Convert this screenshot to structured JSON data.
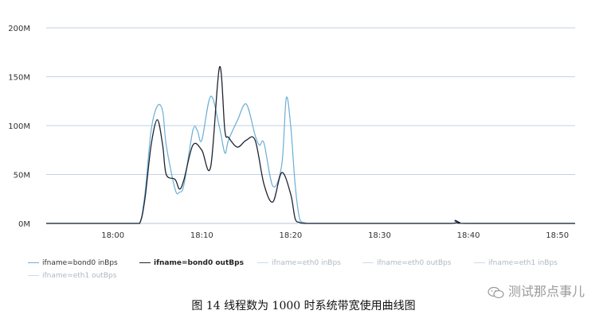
{
  "chart_data": {
    "type": "line",
    "title": "",
    "xlabel": "",
    "ylabel": "",
    "y_ticks": [
      "0M",
      "50M",
      "100M",
      "150M",
      "200M"
    ],
    "ylim": [
      0,
      200
    ],
    "x_ticks": [
      "18:00",
      "18:10",
      "18:20",
      "18:30",
      "18:40",
      "18:50"
    ],
    "xlim": [
      -7.5,
      52
    ],
    "grid": "horizontal",
    "legend_position": "bottom",
    "series": [
      {
        "name": "ifname=bond0 inBps",
        "color": "#6baed6",
        "x": [
          -7.5,
          0,
          2,
          3,
          3.6,
          4.3,
          5,
          5.6,
          6,
          7,
          7.5,
          8,
          9,
          9.5,
          10,
          11,
          12,
          12.6,
          13,
          14,
          15,
          16,
          16.5,
          17,
          18,
          19,
          19.5,
          20,
          20.5,
          21,
          21.5,
          22,
          23,
          30,
          38,
          38.5,
          39,
          40,
          52
        ],
        "y": [
          0,
          0,
          0,
          0,
          30,
          95,
          120,
          115,
          80,
          35,
          32,
          40,
          95,
          95,
          85,
          130,
          98,
          72,
          85,
          105,
          122,
          90,
          80,
          82,
          38,
          60,
          128,
          100,
          40,
          5,
          1,
          0,
          0,
          0,
          0,
          2,
          1,
          0,
          0
        ]
      },
      {
        "name": "ifname=bond0 outBps",
        "color": "#1f2430",
        "x": [
          -7.5,
          0,
          2,
          3,
          3.6,
          4.3,
          5,
          5.6,
          6,
          7,
          7.5,
          8,
          9,
          10,
          11,
          12,
          12.6,
          13,
          14,
          15,
          16,
          17,
          18,
          19,
          20,
          20.5,
          21,
          21.5,
          22,
          23,
          30,
          38,
          38.5,
          39,
          40,
          52
        ],
        "y": [
          0,
          0,
          0,
          0,
          25,
          80,
          106,
          80,
          50,
          45,
          35,
          45,
          80,
          75,
          58,
          160,
          95,
          88,
          78,
          85,
          85,
          40,
          22,
          52,
          30,
          5,
          1,
          0,
          0,
          0,
          0,
          0,
          3,
          1,
          0,
          0
        ]
      },
      {
        "name": "ifname=eth0 inBps",
        "color": "#c9dcee",
        "x": [],
        "y": []
      },
      {
        "name": "ifname=eth0 outBps",
        "color": "#c9dcee",
        "x": [],
        "y": []
      },
      {
        "name": "ifname=eth1 inBps",
        "color": "#c9dcee",
        "x": [],
        "y": []
      },
      {
        "name": "ifname=eth1 outBps",
        "color": "#c9dcee",
        "x": [],
        "y": []
      }
    ]
  },
  "legend": {
    "items": [
      {
        "label": "ifname=bond0 inBps",
        "color": "#6baed6",
        "bold": false
      },
      {
        "label": "ifname=bond0 outBps",
        "color": "#1f2430",
        "bold": true
      },
      {
        "label": "ifname=eth0 inBps",
        "color": "#c9dcee",
        "bold": false
      },
      {
        "label": "ifname=eth0 outBps",
        "color": "#c9dcee",
        "bold": false
      },
      {
        "label": "ifname=eth1 inBps",
        "color": "#c9dcee",
        "bold": false
      },
      {
        "label": "ifname=eth1 outBps",
        "color": "#c9dcee",
        "bold": false
      }
    ]
  },
  "caption": "图 14 线程数为 1000 时系统带宽使用曲线图",
  "watermark": {
    "text": "测试那点事儿",
    "icon": "wechat-icon"
  }
}
